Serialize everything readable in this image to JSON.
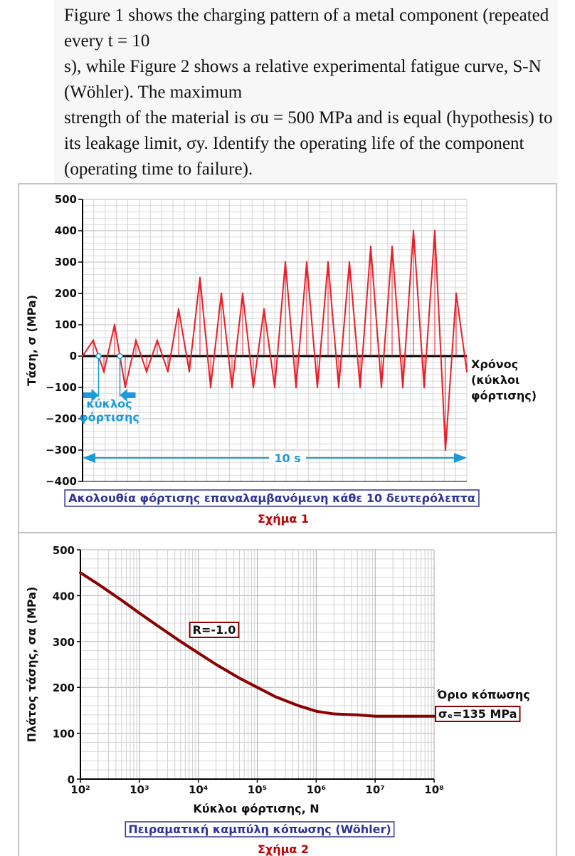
{
  "problem_text": "Figure 1 shows the charging pattern of a metal component (repeated every t = 10\ns), while Figure 2 shows a relative experimental fatigue curve, S-N (Wöhler). The maximum\nstrength of the material is σu = 500 MPa and is equal (hypothesis) to its leakage limit, σy. Identify the operating life of the component (operating time to failure).",
  "chart_data": [
    {
      "type": "line",
      "ylabel": "Τάση, σ (MPa)",
      "ylim": [
        -400,
        500
      ],
      "yticks": [
        "500",
        "400",
        "300",
        "200",
        "100",
        "0",
        "−100",
        "−200",
        "−300",
        "−400"
      ],
      "ytick_values": [
        500,
        400,
        300,
        200,
        100,
        0,
        -100,
        -200,
        -300,
        -400
      ],
      "grid": true,
      "x_axis_label": "Χρόνος\n(κύκλοι\nφόρτισης)",
      "cycle_label": "κύκλος\nφόρτισης",
      "period_label": "10 s",
      "caption": "Ακολουθία φόρτισης επαναλαμβανόμενη κάθε 10 δευτερόλεπτα",
      "figure_label": "Σχήμα 1",
      "series": [
        {
          "values": [
            0,
            50,
            -50,
            100,
            -100,
            50,
            -50,
            50,
            -50,
            150,
            -50,
            250,
            -100,
            200,
            -100,
            200,
            -100,
            150,
            -100,
            300,
            -100,
            300,
            -100,
            300,
            -100,
            300,
            -100,
            350,
            -100,
            350,
            -100,
            400,
            -100,
            400,
            -300,
            200,
            -50
          ]
        }
      ]
    },
    {
      "type": "line",
      "ylabel": "Πλάτος τάσης, σα (MPa)",
      "xlabel": "Κύκλοι φόρτισης, N",
      "xscale": "log",
      "xlim": [
        100,
        100000000
      ],
      "ylim": [
        0,
        500
      ],
      "yticks": [
        "0",
        "100",
        "200",
        "300",
        "400",
        "500"
      ],
      "ytick_values": [
        0,
        100,
        200,
        300,
        400,
        500
      ],
      "xticks": [
        "10²",
        "10³",
        "10⁴",
        "10⁵",
        "10⁶",
        "10⁷",
        "10⁸"
      ],
      "xtick_values": [
        100,
        1000,
        10000,
        100000,
        1000000,
        10000000,
        100000000
      ],
      "grid": true,
      "color": "#8b0000",
      "annotation_ratio": "R=-1.0",
      "annotation_limit": "Όριο κόπωσης",
      "annotation_limit_value": "σₑ=135 MPa",
      "caption": "Πειραματική καμπύλη κόπωσης (Wöhler)",
      "figure_label": "Σχήμα 2",
      "series": [
        {
          "x": [
            100,
            200,
            500,
            1000,
            2000,
            5000,
            10000,
            20000,
            50000,
            100000,
            200000,
            500000,
            1000000,
            2000000,
            5000000,
            10000000,
            100000000
          ],
          "values": [
            450,
            425,
            390,
            362,
            335,
            300,
            275,
            250,
            220,
            200,
            180,
            160,
            148,
            142,
            140,
            137,
            137
          ]
        }
      ]
    }
  ]
}
